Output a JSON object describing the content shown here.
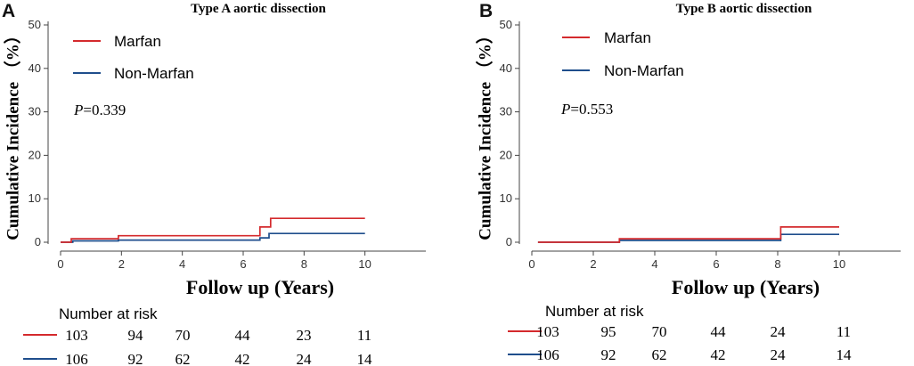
{
  "colors": {
    "marfan": "#d42a2d",
    "non_marfan": "#1f4e8c",
    "axis": "#444444"
  },
  "chart_data": [
    {
      "type": "line",
      "panel_letter": "A",
      "title": "Type A aortic dissection",
      "ylabel": "Cumulative Incidence （%）",
      "xlabel": "Follow up (Years)",
      "x_ticks": [
        "0",
        "2",
        "4",
        "6",
        "8",
        "10"
      ],
      "y_ticks": [
        "0",
        "10",
        "20",
        "30",
        "40",
        "50"
      ],
      "xlim": [
        0,
        12
      ],
      "ylim": [
        0,
        50
      ],
      "p_label": "P",
      "p_value": "=0.339",
      "series": [
        {
          "name": "Marfan",
          "color_key": "marfan",
          "points": [
            [
              0,
              0
            ],
            [
              0.35,
              0
            ],
            [
              0.35,
              0.8
            ],
            [
              1.9,
              0.8
            ],
            [
              1.9,
              1.5
            ],
            [
              6.55,
              1.5
            ],
            [
              6.55,
              3.5
            ],
            [
              6.9,
              3.5
            ],
            [
              6.9,
              5.5
            ],
            [
              10,
              5.5
            ]
          ]
        },
        {
          "name": "Non-Marfan",
          "color_key": "non_marfan",
          "points": [
            [
              0,
              0
            ],
            [
              0.4,
              0
            ],
            [
              0.4,
              0.3
            ],
            [
              1.9,
              0.3
            ],
            [
              1.9,
              0.5
            ],
            [
              6.55,
              0.5
            ],
            [
              6.55,
              1
            ],
            [
              6.85,
              1
            ],
            [
              6.85,
              2
            ],
            [
              10,
              2
            ]
          ]
        }
      ],
      "risk_table": {
        "title": "Number at risk",
        "rows": [
          {
            "color_key": "marfan",
            "values": [
              "103",
              "94",
              "70",
              "44",
              "23",
              "11"
            ]
          },
          {
            "color_key": "non_marfan",
            "values": [
              "106",
              "92",
              "62",
              "42",
              "24",
              "14"
            ]
          }
        ]
      }
    },
    {
      "type": "line",
      "panel_letter": "B",
      "title": "Type B aortic dissection",
      "ylabel": "Cumulative Incidence （%）",
      "xlabel": "Follow up (Years)",
      "x_ticks": [
        "0",
        "2",
        "4",
        "6",
        "8",
        "10"
      ],
      "y_ticks": [
        "0",
        "10",
        "20",
        "30",
        "40",
        "50"
      ],
      "xlim": [
        0,
        12
      ],
      "ylim": [
        0,
        50
      ],
      "p_label": "P",
      "p_value": "=0.553",
      "series": [
        {
          "name": "Marfan",
          "color_key": "marfan",
          "points": [
            [
              0.2,
              0
            ],
            [
              2.85,
              0
            ],
            [
              2.85,
              0.8
            ],
            [
              8.1,
              0.8
            ],
            [
              8.1,
              3.5
            ],
            [
              10,
              3.5
            ]
          ]
        },
        {
          "name": "Non-Marfan",
          "color_key": "non_marfan",
          "points": [
            [
              0.2,
              0
            ],
            [
              2.85,
              0
            ],
            [
              2.85,
              0.4
            ],
            [
              8.1,
              0.4
            ],
            [
              8.1,
              1.8
            ],
            [
              10,
              1.8
            ]
          ]
        }
      ],
      "risk_table": {
        "title": "Number at risk",
        "rows": [
          {
            "color_key": "marfan",
            "values": [
              "103",
              "95",
              "70",
              "44",
              "24",
              "11"
            ]
          },
          {
            "color_key": "non_marfan",
            "values": [
              "106",
              "92",
              "62",
              "42",
              "24",
              "14"
            ]
          }
        ]
      }
    }
  ]
}
